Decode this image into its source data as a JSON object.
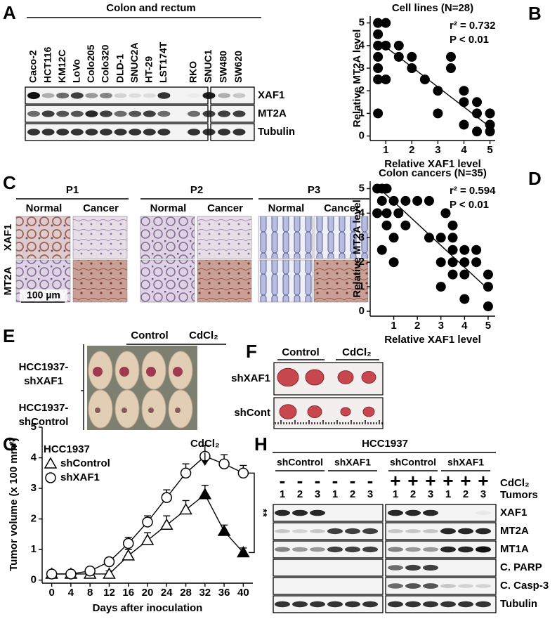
{
  "panel_a": {
    "label": "A",
    "title": "Colon and rectum",
    "cell_lines": [
      "Caco-2",
      "HCT116",
      "KM12C",
      "LoVo",
      "Colo205",
      "Colo320",
      "DLD-1",
      "SNUC2A",
      "HT-29",
      "LST174T",
      "RKO",
      "SNUC1",
      "SW480",
      "SW620"
    ],
    "proteins": [
      "XAF1",
      "MT2A",
      "Tubulin"
    ]
  },
  "panel_c": {
    "label": "C",
    "patients": [
      "P1",
      "P2",
      "P3"
    ],
    "tissues": [
      "Normal",
      "Cancer"
    ],
    "stains": [
      "XAF1",
      "MT2A"
    ],
    "scale_bar": "100 µm"
  },
  "panel_e": {
    "label": "E",
    "columns": [
      "Control",
      "CdCl₂"
    ],
    "rows": [
      [
        "HCC1937-",
        "shXAF1"
      ],
      [
        "HCC1937-",
        "shControl"
      ]
    ]
  },
  "panel_f": {
    "label": "F",
    "columns": [
      "Control",
      "CdCl₂"
    ],
    "rows": [
      "shXAF1",
      "shCont"
    ]
  },
  "panel_h": {
    "label": "H",
    "title": "HCC1937",
    "groups": [
      "shControl",
      "shXAF1",
      "shControl",
      "shXAF1"
    ],
    "treatment_label": "CdCl₂",
    "tumors_label": "Tumors",
    "treatment": [
      "-",
      "-",
      "-",
      "-",
      "-",
      "-",
      "+",
      "+",
      "+",
      "+",
      "+",
      "+"
    ],
    "tumors": [
      1,
      2,
      3
    ],
    "proteins": [
      "XAF1",
      "MT2A",
      "MT1A",
      "C. PARP",
      "C. Casp-3",
      "Tubulin"
    ]
  },
  "chart_data": [
    {
      "type": "scatter",
      "panel_label": "B",
      "title": "Cell lines (N=28)",
      "x_label": "Relative XAF1 level",
      "y_label": "Relative MT2A level",
      "annotations": [
        "r² = 0.732",
        "P < 0.01"
      ],
      "series": [
        {
          "color": "#000000",
          "x": [
            0.7,
            0.7,
            0.7,
            0.7,
            0.7,
            0.7,
            0.7,
            1,
            1,
            1,
            1.5,
            1.5,
            2,
            2,
            2.5,
            3,
            3,
            3.5,
            3.5,
            4,
            4,
            4,
            4.5,
            4.5,
            4.5,
            5,
            5,
            5
          ],
          "values": [
            5,
            4.5,
            4,
            3.5,
            3,
            2.5,
            1,
            5,
            4,
            2.5,
            4,
            3.5,
            3.5,
            3,
            2.5,
            2,
            1,
            3.5,
            3,
            2,
            1.5,
            0.5,
            1.5,
            1,
            0.2,
            1,
            0.5,
            0.2
          ]
        }
      ],
      "fit_line": {
        "x": [
          0.7,
          5
        ],
        "values": [
          4.2,
          0.4
        ]
      },
      "xlim": [
        0.4,
        5.2
      ],
      "xticks": [
        1,
        2,
        3,
        4,
        5
      ],
      "ylim": [
        -0.2,
        5.3
      ],
      "yticks": [
        0,
        1,
        2,
        3,
        4,
        5
      ]
    },
    {
      "type": "scatter",
      "panel_label": "D",
      "title": "Colon cancers (N=35)",
      "x_label": "Relative XAF1 level",
      "y_label": "Relative MT2A level",
      "annotations": [
        "r² = 0.594",
        "P < 0.01"
      ],
      "series": [
        {
          "color": "#000000",
          "x": [
            0.3,
            0.3,
            0.5,
            0.5,
            0.5,
            0.7,
            0.7,
            0.7,
            1,
            1,
            1,
            1.2,
            1.5,
            1.5,
            2,
            2.5,
            2.5,
            3,
            3,
            3,
            3.2,
            3.5,
            3.5,
            3.5,
            3.5,
            3.5,
            4,
            4,
            4,
            4,
            4.5,
            4.5,
            5,
            5,
            5
          ],
          "values": [
            5,
            4,
            5,
            4.5,
            2.5,
            5,
            4,
            3.5,
            4.5,
            3,
            2,
            4,
            4.5,
            3.5,
            4.5,
            4.5,
            3,
            3,
            2,
            1,
            4,
            3.5,
            3,
            2.5,
            2,
            1.5,
            2.5,
            2,
            1.5,
            0.5,
            2.5,
            2,
            1.5,
            1,
            0.2
          ]
        }
      ],
      "fit_line": {
        "x": [
          0.4,
          5
        ],
        "values": [
          5,
          0.9
        ]
      },
      "xlim": [
        0,
        5.3
      ],
      "xticks": [
        1,
        2,
        3,
        4,
        5
      ],
      "ylim": [
        -0.2,
        5.3
      ],
      "yticks": [
        0,
        1,
        2,
        3,
        4,
        5
      ]
    },
    {
      "type": "line",
      "panel_label": "G",
      "x_label": "Days after inoculation",
      "y_label": "Tumor volume (x 100 mm²)",
      "legend_title": "HCC1937",
      "annotations": [
        "CdCl₂",
        "**"
      ],
      "x": [
        0,
        4,
        8,
        12,
        16,
        20,
        24,
        28,
        32,
        36,
        40
      ],
      "series": [
        {
          "name": "shControl",
          "marker": "triangle",
          "color": "#000000",
          "values": [
            0.2,
            0.2,
            0.2,
            0.2,
            0.8,
            1.3,
            1.8,
            2.3,
            2.8,
            1.6,
            0.9
          ],
          "errors": [
            0.05,
            0.05,
            0.05,
            0.1,
            0.2,
            0.25,
            0.3,
            0.3,
            0.3,
            0.2,
            0.15
          ],
          "filled": [
            false,
            false,
            false,
            false,
            false,
            false,
            false,
            false,
            true,
            true,
            true
          ]
        },
        {
          "name": "shXAF1",
          "marker": "circle",
          "color": "#000000",
          "values": [
            0.2,
            0.2,
            0.3,
            0.6,
            1.2,
            1.9,
            2.7,
            3.5,
            4.05,
            3.8,
            3.5
          ],
          "errors": [
            0.05,
            0.05,
            0.1,
            0.1,
            0.2,
            0.2,
            0.25,
            0.3,
            0.35,
            0.3,
            0.25
          ],
          "filled": [
            false,
            false,
            false,
            false,
            false,
            false,
            false,
            false,
            false,
            false,
            false
          ]
        }
      ],
      "xlim": [
        -2,
        42
      ],
      "xticks": [
        0,
        4,
        8,
        12,
        16,
        20,
        24,
        28,
        32,
        36,
        40
      ],
      "ylim": [
        -0.1,
        5
      ],
      "yticks": [
        0,
        1,
        2,
        3,
        4,
        5
      ]
    }
  ]
}
